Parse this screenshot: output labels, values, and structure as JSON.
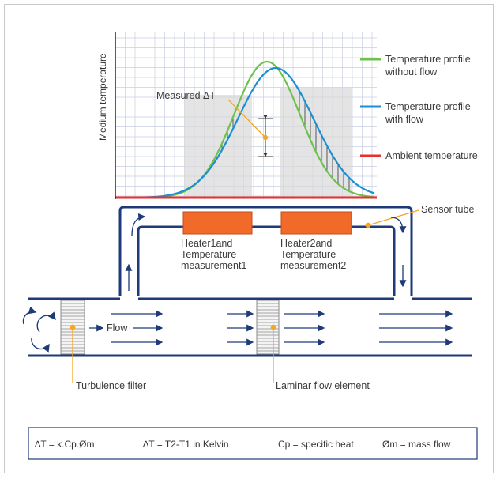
{
  "diagram": {
    "y_axis_label": "Medium temperature",
    "measured_label": "Measured ΔT",
    "legend": [
      {
        "label_line1": "Temperature profile",
        "label_line2": "without flow",
        "color": "#6cc24a"
      },
      {
        "label_line1": "Temperature profile",
        "label_line2": "with flow",
        "color": "#1a8fd6"
      },
      {
        "label_line1": "Ambient temperature",
        "label_line2": "",
        "color": "#e8312f"
      }
    ],
    "sensor_tube_label": "Sensor tube",
    "heater1": {
      "line1": "Heater1and",
      "line2": "Temperature",
      "line3": "measurement1"
    },
    "heater2": {
      "line1": "Heater2and",
      "line2": "Temperature",
      "line3": "measurement2"
    },
    "flow_label": "Flow",
    "turbulence_filter_label": "Turbulence filter",
    "laminar_flow_label": "Laminar flow element",
    "colors": {
      "pipe": "#1e3a78",
      "heater": "#f26a2a",
      "callout": "#f5a623",
      "grid": "#c9cfe0"
    }
  },
  "formula": {
    "f1": "∆T = k.Cp.Øm",
    "f2": "∆T = T2-T1 in Kelvin",
    "f3": "Cp = specific heat",
    "f4": "Øm = mass flow"
  }
}
